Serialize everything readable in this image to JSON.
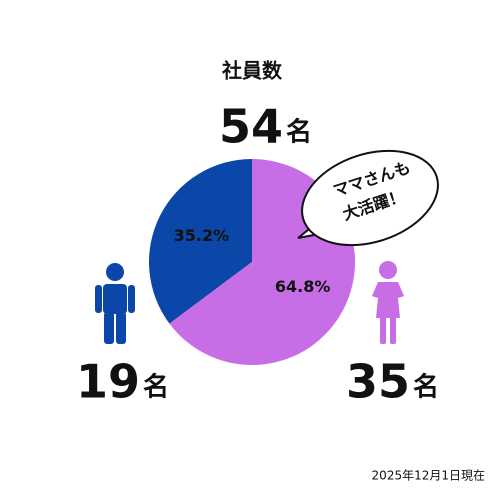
{
  "chart_data": {
    "type": "pie",
    "title": "社員数",
    "total": 54,
    "unit": "名",
    "values": [
      35.2,
      64.8
    ],
    "value_labels": [
      "35.2%",
      "64.8%"
    ],
    "colors": [
      "#0b47a8",
      "#c76ee6"
    ],
    "counts": [
      19,
      35
    ],
    "annotation": [
      "ママさんも",
      "大活躍！"
    ],
    "note": "2025年12月1日現在"
  }
}
